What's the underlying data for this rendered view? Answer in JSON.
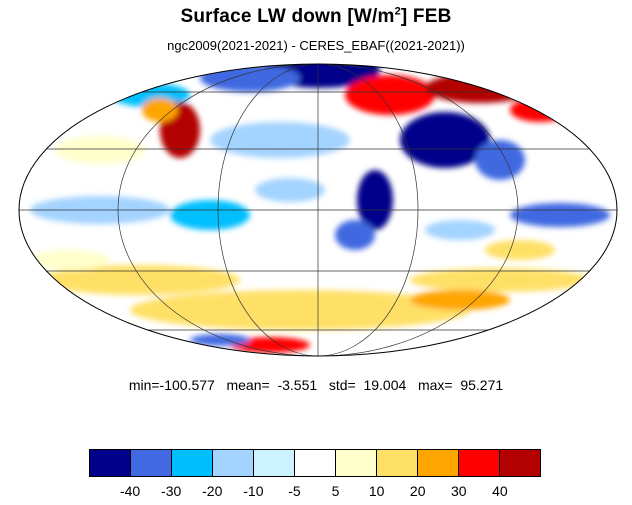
{
  "title": {
    "main": "Surface LW down [W/m",
    "sup": "2",
    "suffix": "]  FEB"
  },
  "subtitle": "ngc2009(2021-2021) - CERES_EBAF((2021-2021))",
  "stats": "min=-100.577   mean=  -3.551   std=  19.004   max=  95.271",
  "colorbar": {
    "colors": [
      "#00008b",
      "#4169e1",
      "#00bfff",
      "#a3d3ff",
      "#ccf2ff",
      "#ffffff",
      "#ffffcc",
      "#ffe066",
      "#ffa500",
      "#ff0000",
      "#b30000"
    ],
    "tick_labels": [
      "-40",
      "-30",
      "-20",
      "-10",
      "-5",
      "5",
      "10",
      "20",
      "30",
      "40"
    ]
  },
  "map": {
    "projection": "mollweide",
    "variable": "Surface LW down difference",
    "month": "FEB"
  }
}
